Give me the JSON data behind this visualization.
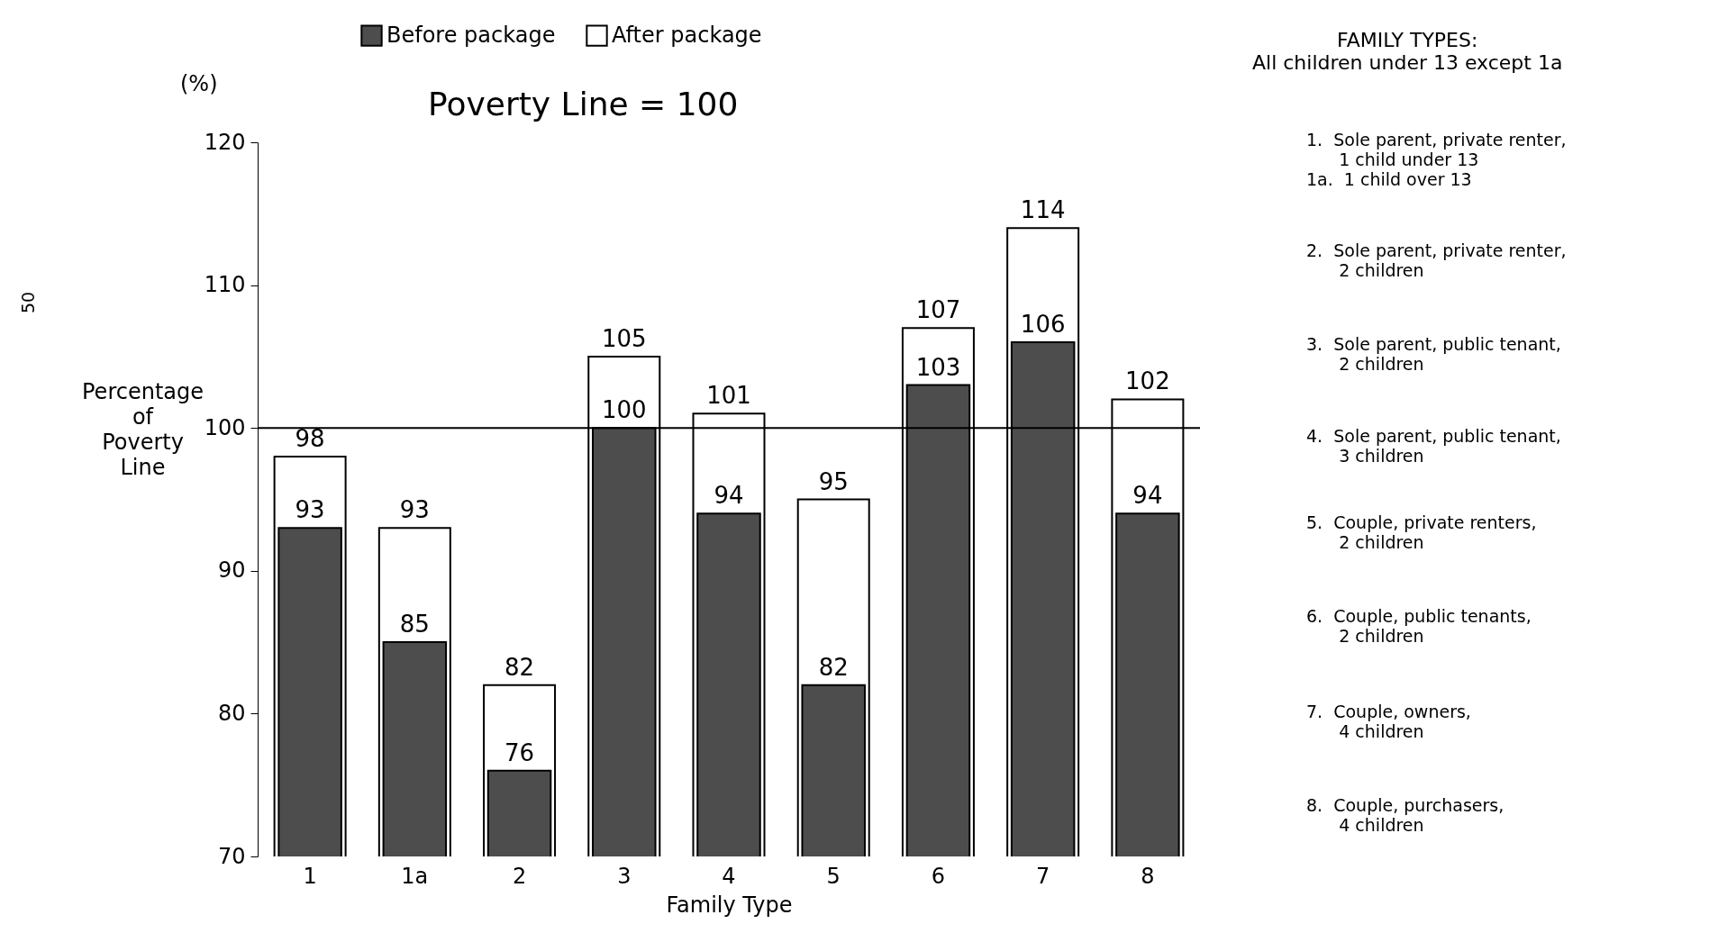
{
  "chart_data": {
    "type": "bar",
    "title": "Poverty Line = 100",
    "xlabel": "Family Type",
    "ylabel": "Percentage of Poverty Line",
    "categories": [
      "1",
      "1a",
      "2",
      "3",
      "4",
      "5",
      "6",
      "7",
      "8"
    ],
    "series": [
      {
        "name": "Before package",
        "color": "#4d4d4d",
        "values": [
          93,
          85,
          76,
          100,
          94,
          82,
          103,
          106,
          94
        ]
      },
      {
        "name": "After package",
        "color": "#ffffff",
        "values": [
          98,
          93,
          82,
          105,
          101,
          95,
          107,
          114,
          102
        ]
      }
    ],
    "ylim": [
      70,
      120
    ],
    "yticks": [
      70,
      80,
      90,
      100,
      110,
      120
    ],
    "legend": "top",
    "data_labels": true,
    "ref_lines": [
      {
        "axis": "y",
        "value": 100
      }
    ],
    "annotations": [
      "(%)",
      "50",
      "FAMILY TYPES:\nAll children under 13 except 1a",
      "1.  Sole parent, private renter,\n      1 child under 13\n1a.  1 child over 13",
      "2.  Sole parent, private renter,\n      2 children",
      "3.  Sole parent, public tenant,\n      2 children",
      "4.  Sole parent, public tenant,\n      3 children",
      "5.  Couple, private renters,\n      2 children",
      "6.  Couple, public tenants,\n      2 children",
      "7.  Couple, owners,\n      4 children",
      "8.  Couple, purchasers,\n      4 children"
    ]
  }
}
